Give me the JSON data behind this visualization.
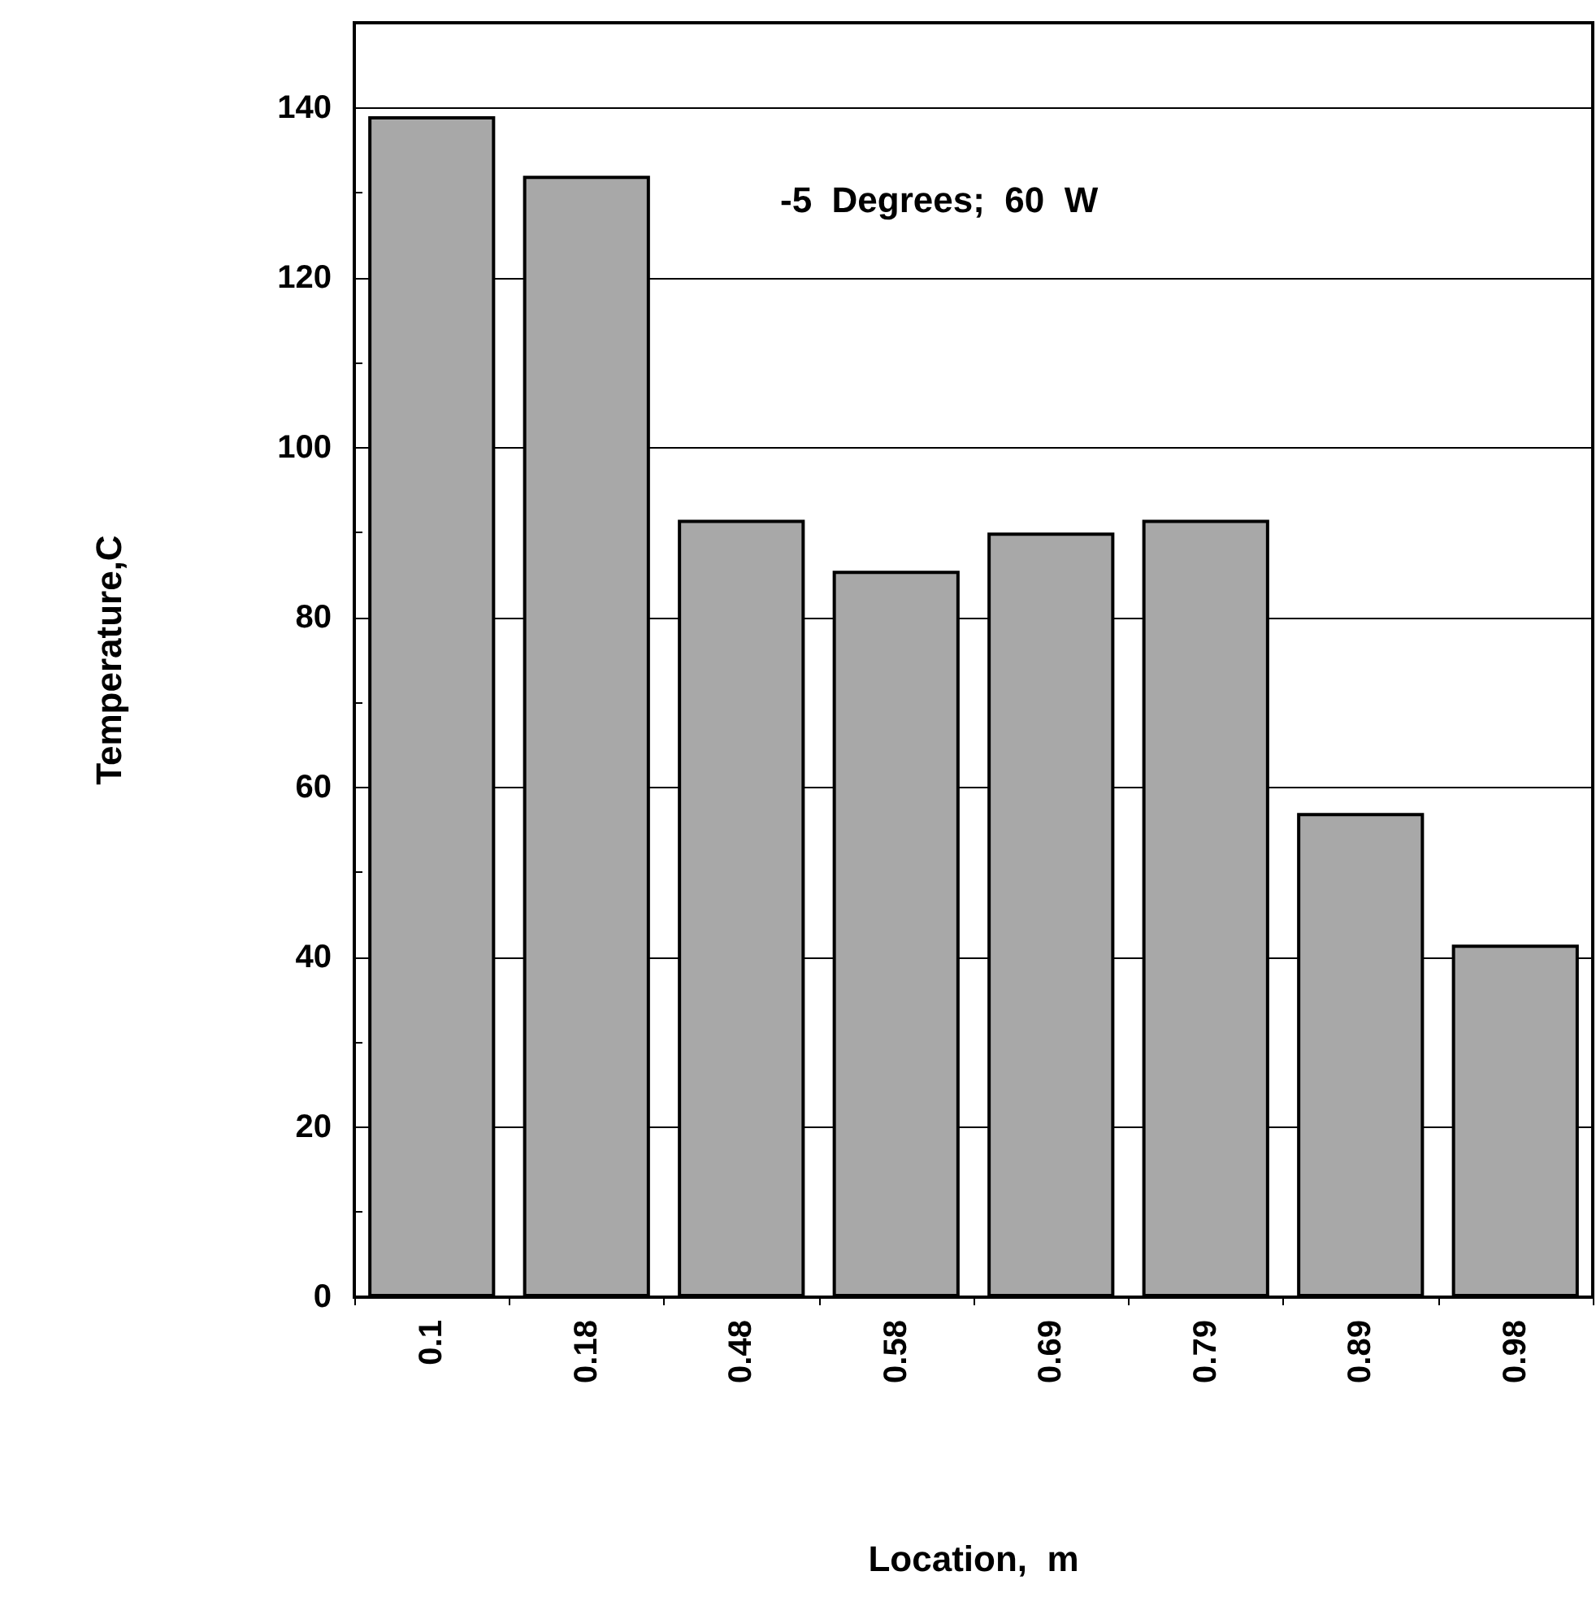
{
  "chart_data": {
    "type": "bar",
    "xlabel": "Location,  m",
    "ylabel": "Temperature,C",
    "annotations": [
      "-5  Degrees;  60  W"
    ],
    "categories": [
      "0.1",
      "0.18",
      "0.48",
      "0.58",
      "0.69",
      "0.79",
      "0.89",
      "0.98"
    ],
    "values": [
      139,
      132,
      91.5,
      85.5,
      90,
      91.5,
      57,
      41.5
    ],
    "color": "#a8a8a8",
    "ylim": [
      0,
      150
    ],
    "yticks": [
      0,
      20,
      40,
      60,
      80,
      100,
      120,
      140
    ],
    "grid": "y"
  }
}
